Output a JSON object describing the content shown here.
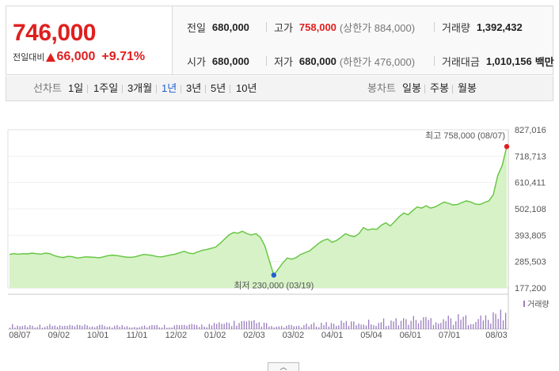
{
  "quote": {
    "price": "746,000",
    "change_label": "전일대비",
    "change_value": "66,000",
    "change_percent": "+9.71%",
    "prev_close_label": "전일",
    "prev_close": "680,000",
    "high_label": "고가",
    "high": "758,000",
    "upper_limit_text": "(상한가 884,000)",
    "volume_label": "거래량",
    "volume": "1,392,432",
    "open_label": "시가",
    "open": "680,000",
    "low_label": "저가",
    "low": "680,000",
    "lower_limit_text": "(하한가 476,000)",
    "amount_label": "거래대금",
    "amount": "1,010,156",
    "amount_unit": "백만",
    "up_color": "#e01f1f"
  },
  "period_tabs": {
    "label": "선차트",
    "items": [
      "1일",
      "1주일",
      "3개월",
      "1년",
      "3년",
      "5년",
      "10년"
    ],
    "active": "1년"
  },
  "candle_tabs": {
    "label": "봉차트",
    "items": [
      "일봉",
      "주봉",
      "월봉"
    ]
  },
  "chart_data": {
    "type": "area",
    "y_ticks": [
      "827,016",
      "718,713",
      "610,411",
      "502,108",
      "393,805",
      "285,503",
      "177,200"
    ],
    "ylim": [
      177200,
      827016
    ],
    "x_ticks": [
      "08/07",
      "09/02",
      "10/01",
      "11/01",
      "12/02",
      "01/02",
      "02/03",
      "03/02",
      "04/01",
      "05/04",
      "06/01",
      "07/01",
      "08/03"
    ],
    "high_annotation": "최고 758,000 (08/07)",
    "low_annotation": "최저 230,000 (03/19)",
    "high_value": 758000,
    "low_value": 230000,
    "volume_label": "거래량",
    "line_color": "#62c53e",
    "fill_color": "#d6f2c6",
    "high_marker_color": "#e01f1f",
    "low_marker_color": "#1f5fd0",
    "volume_color": "#9a7cc0",
    "series": [
      {
        "values": [
          315000,
          318000,
          316000,
          318000,
          317000,
          320000,
          318000,
          316000,
          320000,
          318000,
          310000,
          305000,
          302000,
          307000,
          306000,
          300000,
          302000,
          305000,
          304000,
          303000,
          301000,
          305000,
          310000,
          312000,
          310000,
          307000,
          304000,
          303000,
          305000,
          310000,
          315000,
          313000,
          310000,
          306000,
          305000,
          309000,
          313000,
          316000,
          322000,
          328000,
          320000,
          318000,
          325000,
          332000,
          335000,
          340000,
          345000,
          360000,
          378000,
          395000,
          405000,
          402000,
          410000,
          400000,
          395000,
          400000,
          385000,
          350000,
          290000,
          230000,
          255000,
          280000,
          300000,
          295000,
          302000,
          315000,
          322000,
          330000,
          345000,
          360000,
          372000,
          378000,
          365000,
          372000,
          385000,
          400000,
          392000,
          388000,
          400000,
          425000,
          415000,
          420000,
          418000,
          435000,
          445000,
          432000,
          450000,
          470000,
          485000,
          478000,
          495000,
          510000,
          505000,
          515000,
          505000,
          510000,
          520000,
          530000,
          525000,
          518000,
          520000,
          528000,
          535000,
          530000,
          522000,
          520000,
          528000,
          535000,
          560000,
          640000,
          680000,
          758000
        ]
      }
    ]
  },
  "footer": {
    "expand_icon": "chevron-up-icon"
  }
}
